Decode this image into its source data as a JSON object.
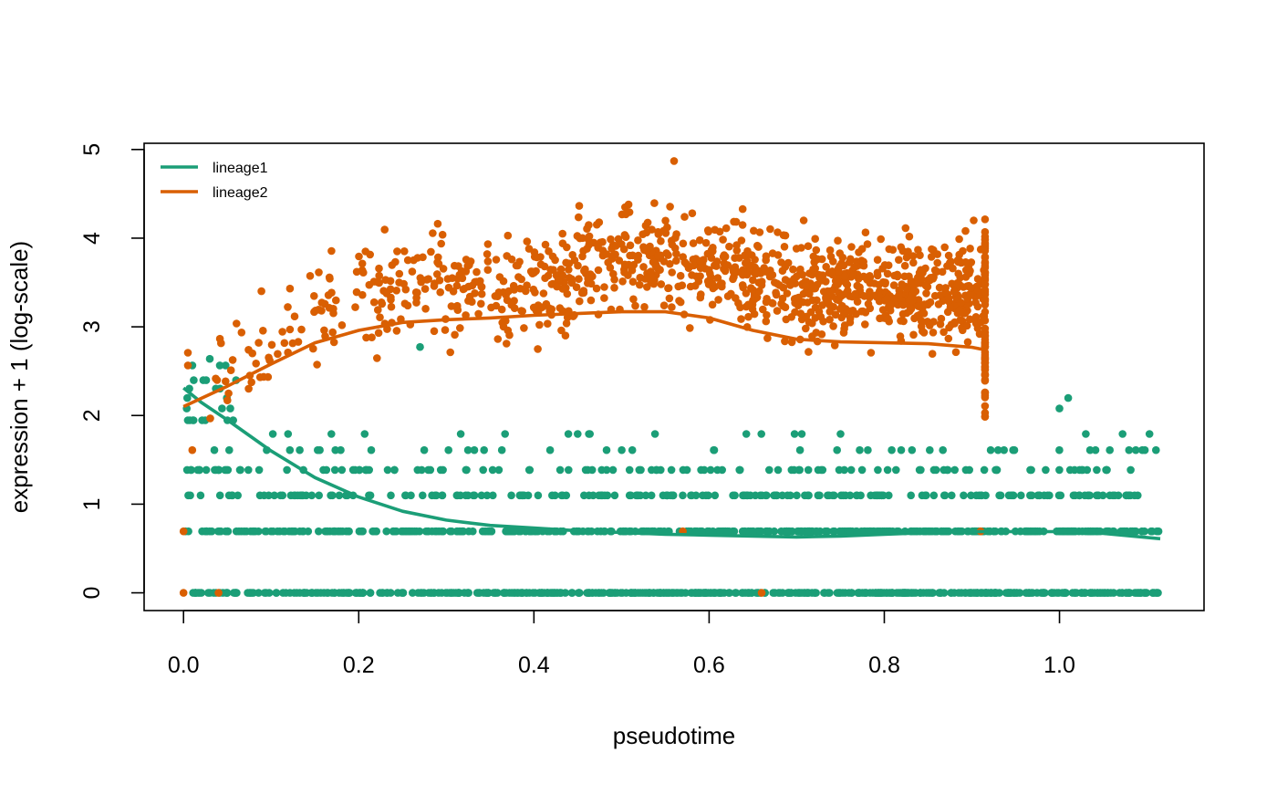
{
  "chart_data": {
    "type": "scatter",
    "title": "",
    "xlabel": "pseudotime",
    "ylabel": "expression + 1 (log-scale)",
    "xlim": [
      -0.045,
      1.165
    ],
    "ylim": [
      -0.2,
      5.07
    ],
    "x_ticks": [
      0.0,
      0.2,
      0.4,
      0.6,
      0.8,
      1.0
    ],
    "x_tick_labels": [
      "0.0",
      "0.2",
      "0.4",
      "0.6",
      "0.8",
      "1.0"
    ],
    "y_ticks": [
      0,
      1,
      2,
      3,
      4,
      5
    ],
    "y_tick_labels": [
      "0",
      "1",
      "2",
      "3",
      "4",
      "5"
    ],
    "grid": false,
    "legend_position": "top-left",
    "series": [
      {
        "name": "lineage1",
        "color": "#1b9e77",
        "point_levels": [
          0,
          0.693,
          1.099,
          1.386,
          1.609,
          1.792,
          1.946,
          2.079,
          2.197,
          2.303,
          2.398,
          2.565
        ],
        "x_range": [
          0.0,
          1.115
        ],
        "curve": {
          "x": [
            0.0,
            0.02,
            0.05,
            0.1,
            0.15,
            0.2,
            0.25,
            0.3,
            0.35,
            0.4,
            0.45,
            0.5,
            0.55,
            0.6,
            0.65,
            0.7,
            0.75,
            0.8,
            0.85,
            0.9,
            0.95,
            1.0,
            1.05,
            1.115
          ],
          "y": [
            2.31,
            2.15,
            1.95,
            1.6,
            1.3,
            1.08,
            0.92,
            0.82,
            0.76,
            0.73,
            0.7,
            0.68,
            0.66,
            0.65,
            0.64,
            0.63,
            0.64,
            0.66,
            0.68,
            0.69,
            0.69,
            0.69,
            0.67,
            0.61
          ]
        }
      },
      {
        "name": "lineage2",
        "color": "#d95f02",
        "x_range": [
          0.0,
          0.915
        ],
        "curve": {
          "x": [
            0.0,
            0.05,
            0.1,
            0.15,
            0.2,
            0.25,
            0.3,
            0.35,
            0.4,
            0.45,
            0.5,
            0.55,
            0.6,
            0.65,
            0.7,
            0.75,
            0.8,
            0.85,
            0.9,
            0.915
          ],
          "y": [
            2.1,
            2.33,
            2.58,
            2.82,
            2.96,
            3.05,
            3.08,
            3.1,
            3.13,
            3.15,
            3.17,
            3.17,
            3.1,
            2.96,
            2.86,
            2.83,
            2.82,
            2.81,
            2.77,
            2.74
          ]
        }
      }
    ]
  }
}
